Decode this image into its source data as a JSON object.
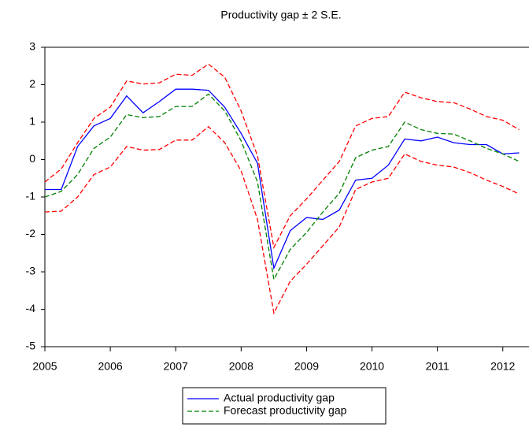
{
  "chart_data": {
    "type": "line",
    "title": "Productivity gap ± 2 S.E.",
    "x": [
      2005,
      2005.25,
      2005.5,
      2005.75,
      2006,
      2006.25,
      2006.5,
      2006.75,
      2007,
      2007.25,
      2007.5,
      2007.75,
      2008,
      2008.25,
      2008.5,
      2008.75,
      2009,
      2009.25,
      2009.5,
      2009.75,
      2010,
      2010.25,
      2010.5,
      2010.75,
      2011,
      2011.25,
      2011.5,
      2011.75,
      2012,
      2012.25
    ],
    "series": [
      {
        "name": "Actual productivity gap",
        "color": "#0000ff",
        "dash": false,
        "values": [
          -0.8,
          -0.8,
          0.35,
          0.9,
          1.1,
          1.7,
          1.25,
          1.55,
          1.88,
          1.88,
          1.85,
          1.4,
          0.7,
          -0.1,
          -2.9,
          -1.9,
          -1.55,
          -1.6,
          -1.35,
          -0.55,
          -0.5,
          -0.15,
          0.55,
          0.5,
          0.6,
          0.45,
          0.4,
          0.4,
          0.15,
          0.18
        ]
      },
      {
        "name": "Forecast productivity gap",
        "color": "#008000",
        "dash": true,
        "values": [
          -1.0,
          -0.85,
          -0.4,
          0.3,
          0.6,
          1.2,
          1.12,
          1.15,
          1.42,
          1.42,
          1.75,
          1.3,
          0.5,
          -0.6,
          -3.2,
          -2.4,
          -1.95,
          -1.4,
          -0.9,
          0.05,
          0.25,
          0.35,
          1.0,
          0.8,
          0.7,
          0.68,
          0.5,
          0.3,
          0.15,
          -0.05
        ]
      }
    ],
    "band": {
      "color": "#ff0000",
      "upper": [
        -0.6,
        -0.25,
        0.45,
        1.1,
        1.4,
        2.1,
        2.02,
        2.05,
        2.28,
        2.25,
        2.55,
        2.2,
        1.3,
        0.1,
        -2.35,
        -1.5,
        -1.05,
        -0.55,
        -0.05,
        0.9,
        1.1,
        1.15,
        1.8,
        1.65,
        1.55,
        1.52,
        1.35,
        1.15,
        1.05,
        0.8
      ],
      "lower": [
        -1.4,
        -1.38,
        -1.0,
        -0.4,
        -0.2,
        0.35,
        0.25,
        0.27,
        0.52,
        0.52,
        0.88,
        0.45,
        -0.3,
        -1.6,
        -4.1,
        -3.25,
        -2.8,
        -2.3,
        -1.8,
        -0.8,
        -0.6,
        -0.5,
        0.15,
        -0.05,
        -0.15,
        -0.2,
        -0.35,
        -0.55,
        -0.72,
        -0.92
      ]
    },
    "xlim": [
      2005,
      2012.4
    ],
    "xticks": [
      2005,
      2006,
      2007,
      2008,
      2009,
      2010,
      2011,
      2012
    ],
    "ylim": [
      -5,
      3
    ],
    "yticks": [
      -5,
      -4,
      -3,
      -2,
      -1,
      0,
      1,
      2,
      3
    ],
    "grid": false,
    "legend": "bottom"
  }
}
